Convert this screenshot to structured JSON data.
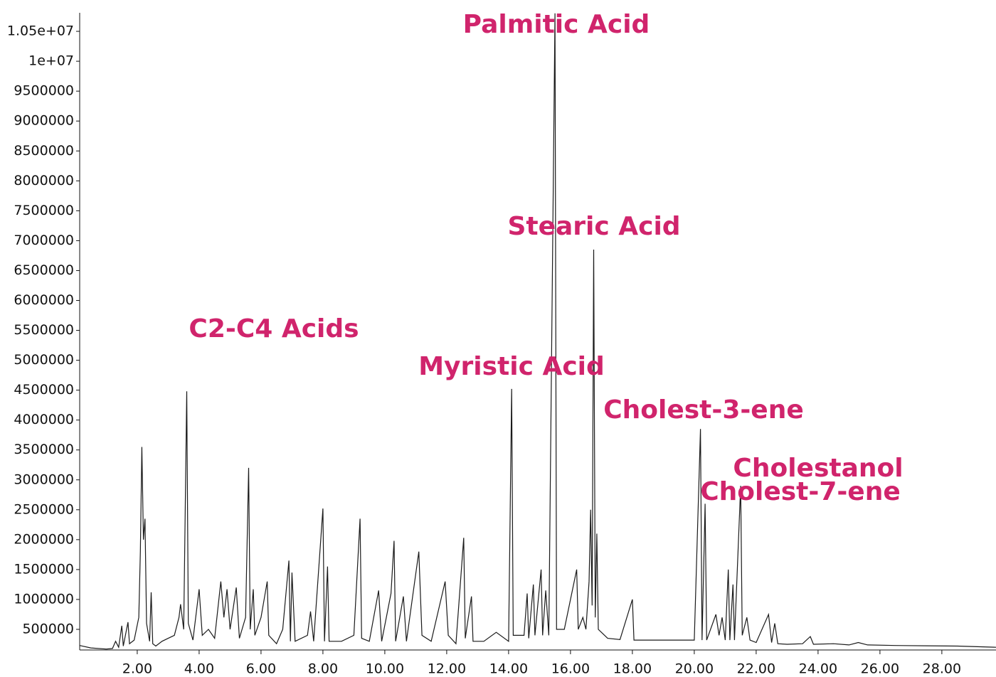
{
  "chart_data": {
    "type": "line",
    "annotations": [
      "Palmitic Acid",
      "Stearic Acid",
      "C2-C4 Acids",
      "Myristic Acid",
      "Cholest-3-ene",
      "Cholestanol",
      "Cholest-7-ene"
    ],
    "annotation_color": "#d0246c",
    "color": "#1a1a1a",
    "xlim": [
      0.14,
      29.75
    ],
    "ylim": [
      155000,
      10810000
    ],
    "xticks": [
      {
        "value": 2,
        "label": "2.00"
      },
      {
        "value": 4,
        "label": "4.00"
      },
      {
        "value": 6,
        "label": "6.00"
      },
      {
        "value": 8,
        "label": "8.00"
      },
      {
        "value": 10,
        "label": "10.00"
      },
      {
        "value": 12,
        "label": "12.00"
      },
      {
        "value": 14,
        "label": "14.00"
      },
      {
        "value": 16,
        "label": "16.00"
      },
      {
        "value": 18,
        "label": "18.00"
      },
      {
        "value": 20,
        "label": "20.00"
      },
      {
        "value": 22,
        "label": "22.00"
      },
      {
        "value": 24,
        "label": "24.00"
      },
      {
        "value": 26,
        "label": "26.00"
      },
      {
        "value": 28,
        "label": "28.00"
      }
    ],
    "yticks": [
      500000,
      1000000,
      1500000,
      2000000,
      2500000,
      3000000,
      3500000,
      4000000,
      4500000,
      5000000,
      5500000,
      6000000,
      6500000,
      7000000,
      7500000,
      8000000,
      8500000,
      9000000,
      9500000,
      {
        "value": 10000000,
        "label": "1e+07"
      },
      {
        "value": 10500000,
        "label": "1.05e+07"
      }
    ],
    "x": [
      0.14,
      0.5,
      1.0,
      1.2,
      1.3,
      1.4,
      1.5,
      1.55,
      1.7,
      1.75,
      1.9,
      2.05,
      2.1,
      2.15,
      2.2,
      2.25,
      2.3,
      2.4,
      2.45,
      2.5,
      2.6,
      2.8,
      3.0,
      3.2,
      3.35,
      3.4,
      3.5,
      3.6,
      3.65,
      3.8,
      4.0,
      4.1,
      4.3,
      4.5,
      4.7,
      4.8,
      4.9,
      5.0,
      5.2,
      5.3,
      5.5,
      5.6,
      5.65,
      5.75,
      5.8,
      6.0,
      6.2,
      6.25,
      6.5,
      6.7,
      6.9,
      6.95,
      7.0,
      7.1,
      7.5,
      7.6,
      7.7,
      8.0,
      8.05,
      8.15,
      8.2,
      8.6,
      9.0,
      9.2,
      9.25,
      9.5,
      9.8,
      9.9,
      10.2,
      10.3,
      10.35,
      10.6,
      10.7,
      11.1,
      11.2,
      11.5,
      11.95,
      12.05,
      12.3,
      12.55,
      12.6,
      12.8,
      12.85,
      13.2,
      13.6,
      14.0,
      14.1,
      14.15,
      14.5,
      14.6,
      14.65,
      14.8,
      14.85,
      15.05,
      15.1,
      15.2,
      15.3,
      15.5,
      15.55,
      15.8,
      16.2,
      16.25,
      16.4,
      16.5,
      16.6,
      16.65,
      16.7,
      16.75,
      16.8,
      16.85,
      16.9,
      17.2,
      17.6,
      18.0,
      18.05,
      18.5,
      19.0,
      19.5,
      20.0,
      20.2,
      20.25,
      20.35,
      20.4,
      20.7,
      20.8,
      20.9,
      21.0,
      21.1,
      21.15,
      21.25,
      21.3,
      21.5,
      21.55,
      21.7,
      21.8,
      22.0,
      22.4,
      22.5,
      22.6,
      22.7,
      23.0,
      23.5,
      23.75,
      23.85,
      24.5,
      25.0,
      25.3,
      25.6,
      26.5,
      27.5,
      28.5,
      29.75
    ],
    "values": [
      230000,
      190000,
      170000,
      180000,
      300000,
      200000,
      560000,
      220000,
      620000,
      260000,
      320000,
      700000,
      1800000,
      3550000,
      2000000,
      2350000,
      600000,
      300000,
      1120000,
      260000,
      220000,
      300000,
      350000,
      400000,
      700000,
      920000,
      500000,
      4480000,
      600000,
      320000,
      1170000,
      400000,
      500000,
      350000,
      1300000,
      700000,
      1170000,
      500000,
      1200000,
      350000,
      700000,
      3200000,
      500000,
      1170000,
      400000,
      700000,
      1300000,
      400000,
      260000,
      500000,
      1650000,
      300000,
      1450000,
      300000,
      400000,
      800000,
      300000,
      2520000,
      300000,
      1550000,
      300000,
      300000,
      400000,
      2350000,
      350000,
      300000,
      1150000,
      300000,
      1100000,
      1980000,
      300000,
      1050000,
      300000,
      1800000,
      400000,
      300000,
      1300000,
      400000,
      260000,
      2030000,
      350000,
      1050000,
      300000,
      300000,
      450000,
      300000,
      4520000,
      400000,
      400000,
      1100000,
      350000,
      1250000,
      400000,
      1500000,
      400000,
      1150000,
      400000,
      10800000,
      500000,
      500000,
      1500000,
      500000,
      700000,
      500000,
      1300000,
      2500000,
      900000,
      6850000,
      700000,
      2100000,
      500000,
      350000,
      330000,
      1000000,
      320000,
      320000,
      320000,
      320000,
      320000,
      3850000,
      320000,
      2600000,
      320000,
      750000,
      400000,
      700000,
      320000,
      1500000,
      320000,
      1250000,
      320000,
      2900000,
      400000,
      700000,
      320000,
      280000,
      750000,
      280000,
      600000,
      260000,
      250000,
      260000,
      380000,
      250000,
      260000,
      240000,
      280000,
      240000,
      230000,
      225000,
      220000,
      200000
    ]
  }
}
